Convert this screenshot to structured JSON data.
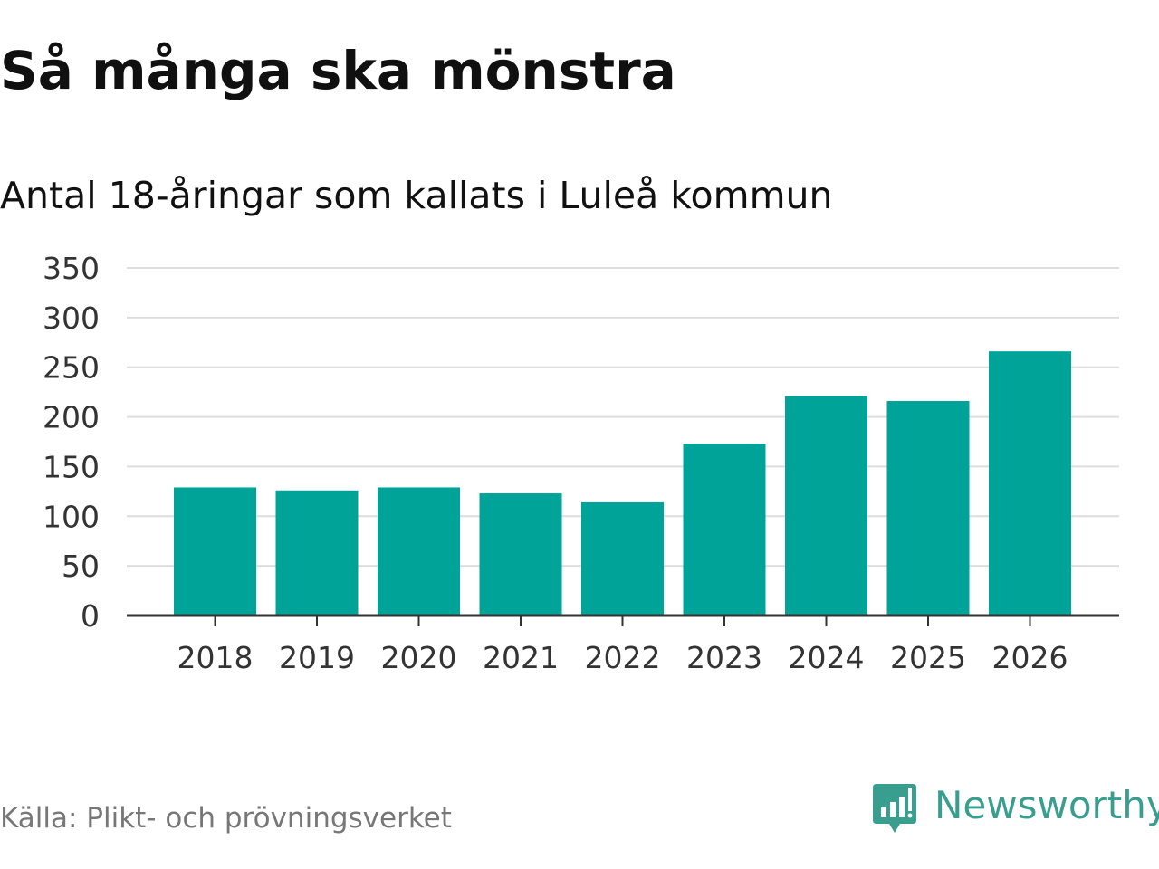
{
  "header": {
    "title": "Så många ska mönstra",
    "subtitle": "Antal 18-åringar som kallats i Luleå kommun"
  },
  "footer": {
    "source": "Källa: Plikt- och prövningsverket",
    "brand": "Newsworthy"
  },
  "colors": {
    "bar": "#00a398",
    "grid": "#dddddd",
    "axis": "#333333",
    "brand": "#3a9e8e"
  },
  "chart_data": {
    "type": "bar",
    "title": "Så många ska mönstra",
    "subtitle": "Antal 18-åringar som kallats i Luleå kommun",
    "xlabel": "",
    "ylabel": "",
    "categories": [
      "2018",
      "2019",
      "2020",
      "2021",
      "2022",
      "2023",
      "2024",
      "2025",
      "2026"
    ],
    "values": [
      129,
      126,
      129,
      123,
      114,
      173,
      221,
      216,
      266
    ],
    "ylim": [
      0,
      350
    ],
    "yticks": [
      0,
      50,
      100,
      150,
      200,
      250,
      300,
      350
    ],
    "grid": true,
    "legend": "none"
  }
}
